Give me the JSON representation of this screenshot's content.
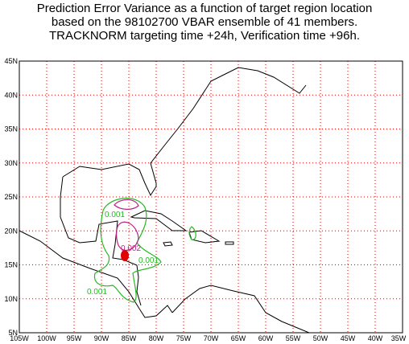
{
  "header": {
    "title": [
      "Prediction Error Variance as a function of target region location",
      "based on the 98102700 VBAR ensemble of 41 members.",
      "TRACKNORM targeting time +24h, Verification time +96h."
    ]
  },
  "map": {
    "lonlim": [
      -105,
      -35
    ],
    "latlim": [
      5,
      45
    ],
    "lon_ticks": [
      {
        "value": -105,
        "label": "105W"
      },
      {
        "value": -100,
        "label": "100W"
      },
      {
        "value": -95,
        "label": "95W"
      },
      {
        "value": -90,
        "label": "90W"
      },
      {
        "value": -85,
        "label": "85W"
      },
      {
        "value": -80,
        "label": "80W"
      },
      {
        "value": -75,
        "label": "75W"
      },
      {
        "value": -70,
        "label": "70W"
      },
      {
        "value": -65,
        "label": "65W"
      },
      {
        "value": -60,
        "label": "60W"
      },
      {
        "value": -55,
        "label": "55W"
      },
      {
        "value": -50,
        "label": "50W"
      },
      {
        "value": -45,
        "label": "45W"
      },
      {
        "value": -40,
        "label": "40W"
      },
      {
        "value": -35,
        "label": "35W"
      }
    ],
    "lat_ticks": [
      {
        "value": 5,
        "label": "5N"
      },
      {
        "value": 10,
        "label": "10N"
      },
      {
        "value": 15,
        "label": "15N"
      },
      {
        "value": 20,
        "label": "20N"
      },
      {
        "value": 25,
        "label": "25N"
      },
      {
        "value": 30,
        "label": "30N"
      },
      {
        "value": 35,
        "label": "35N"
      },
      {
        "value": 40,
        "label": "40N"
      },
      {
        "value": 45,
        "label": "45N"
      }
    ],
    "contour_labels": [
      "0.001",
      "0.002",
      "0.001",
      "0.001"
    ]
  }
}
